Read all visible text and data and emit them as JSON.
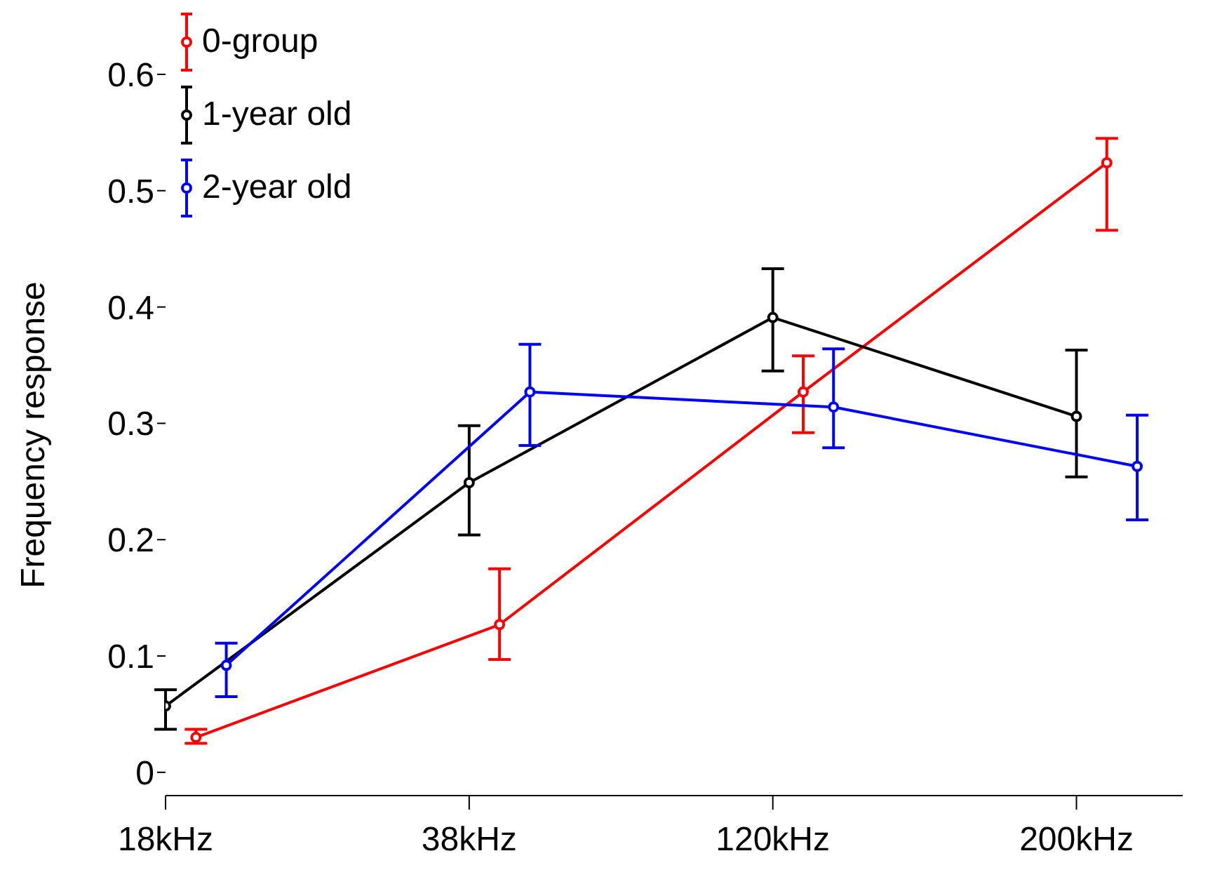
{
  "chart_data": {
    "type": "line",
    "ylabel": "Frequency response",
    "categories": [
      "18kHz",
      "38kHz",
      "120kHz",
      "200kHz"
    ],
    "series": [
      {
        "name": "0-group",
        "color": "#ff0000",
        "values": [
          0.03,
          0.127,
          0.327,
          0.524
        ],
        "errors": [
          [
            0.025,
            0.037
          ],
          [
            0.097,
            0.175
          ],
          [
            0.292,
            0.358
          ],
          [
            0.466,
            0.545
          ]
        ]
      },
      {
        "name": "1-year old",
        "color": "#000000",
        "values": [
          0.057,
          0.249,
          0.391,
          0.306
        ],
        "errors": [
          [
            0.037,
            0.071
          ],
          [
            0.204,
            0.298
          ],
          [
            0.345,
            0.433
          ],
          [
            0.254,
            0.363
          ]
        ]
      },
      {
        "name": "2-year old",
        "color": "#0000ff",
        "values": [
          0.092,
          0.327,
          0.314,
          0.263
        ],
        "errors": [
          [
            0.065,
            0.111
          ],
          [
            0.281,
            0.368
          ],
          [
            0.279,
            0.364
          ],
          [
            0.217,
            0.307
          ]
        ]
      }
    ],
    "ylim": [
      -0.02,
      0.6
    ],
    "yticks": [
      0,
      0.1,
      0.2,
      0.3,
      0.4,
      0.5,
      0.6
    ],
    "legend": "top left",
    "marker": "circle",
    "line_style": "solid",
    "grid": false
  }
}
